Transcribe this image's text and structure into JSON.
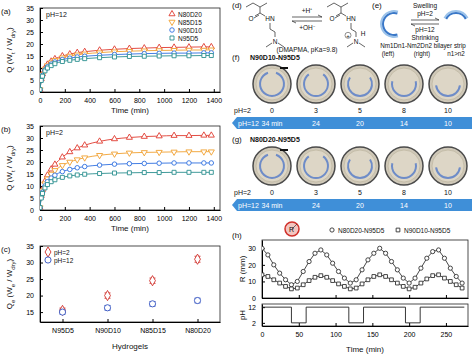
{
  "chart_data": [
    {
      "panel": "(a)",
      "type": "line",
      "annotation": "pH=12",
      "x_label": "Time (min)",
      "y_label": [
        "Q (W",
        "t",
        " / W",
        "dry",
        ")"
      ],
      "x": [
        0,
        10,
        20,
        40,
        60,
        90,
        120,
        180,
        240,
        300,
        360,
        480,
        600,
        720,
        840,
        960,
        1080,
        1200,
        1320,
        1380
      ],
      "xlim": [
        0,
        1450
      ],
      "xticks": [
        0,
        200,
        400,
        600,
        800,
        1000,
        1200,
        1400
      ],
      "ylim": [
        0,
        35
      ],
      "yticks": [
        0,
        5,
        10,
        15,
        20,
        25,
        30,
        35
      ],
      "legend": "top-right",
      "line_style": "smooth",
      "series": [
        {
          "name": "N80D20",
          "color": "#e03a2f",
          "marker": "triangle-up",
          "values": [
            1,
            5.5,
            7.5,
            10,
            11.5,
            12.8,
            13.8,
            15,
            15.8,
            16.4,
            16.8,
            17.4,
            17.8,
            18.1,
            18.3,
            18.5,
            18.6,
            18.7,
            18.8,
            18.8
          ]
        },
        {
          "name": "N85D15",
          "color": "#f0a030",
          "marker": "triangle-down",
          "values": [
            1,
            5.2,
            7.2,
            9.6,
            11,
            12.2,
            13.2,
            14.3,
            15,
            15.5,
            15.9,
            16.4,
            16.8,
            17,
            17.2,
            17.3,
            17.4,
            17.5,
            17.5,
            17.6
          ]
        },
        {
          "name": "N90D10",
          "color": "#2f6fe0",
          "marker": "circle",
          "values": [
            1,
            5,
            6.9,
            9.2,
            10.5,
            11.6,
            12.5,
            13.5,
            14.1,
            14.6,
            14.9,
            15.3,
            15.6,
            15.8,
            16,
            16.1,
            16.2,
            16.2,
            16.3,
            16.3
          ]
        },
        {
          "name": "N95D5",
          "color": "#2a8f8f",
          "marker": "square",
          "values": [
            1,
            4.8,
            6.6,
            8.8,
            10,
            11,
            11.8,
            12.7,
            13.2,
            13.6,
            13.9,
            14.3,
            14.6,
            14.8,
            14.9,
            15,
            15.1,
            15.1,
            15.2,
            15.2
          ]
        }
      ]
    },
    {
      "panel": "(b)",
      "type": "line",
      "annotation": "pH=2",
      "x_label": "Time (min)",
      "y_label": [
        "Q (W",
        "t",
        " / W",
        "dry",
        ")"
      ],
      "x": [
        0,
        10,
        20,
        40,
        60,
        90,
        120,
        180,
        240,
        300,
        360,
        480,
        600,
        720,
        840,
        960,
        1080,
        1200,
        1320,
        1380
      ],
      "xlim": [
        0,
        1450
      ],
      "xticks": [
        0,
        200,
        400,
        600,
        800,
        1000,
        1200,
        1400
      ],
      "ylim": [
        0,
        35
      ],
      "yticks": [
        0,
        5,
        10,
        15,
        20,
        25,
        30,
        35
      ],
      "line_style": "smooth",
      "series": [
        {
          "color": "#e03a2f",
          "marker": "triangle-up",
          "values": [
            1,
            6,
            8.5,
            12,
            14.5,
            17,
            19,
            22,
            24.2,
            25.8,
            27,
            28.6,
            29.6,
            30.2,
            30.6,
            30.8,
            31,
            31,
            31.1,
            31.1
          ]
        },
        {
          "color": "#f0a030",
          "marker": "triangle-down",
          "values": [
            1,
            5.6,
            8,
            11,
            13,
            15,
            16.5,
            18.6,
            20,
            21,
            21.8,
            22.8,
            23.4,
            23.8,
            24,
            24.1,
            24.2,
            24.3,
            24.3,
            24.3
          ]
        },
        {
          "color": "#2f6fe0",
          "marker": "circle",
          "values": [
            1,
            5.3,
            7.4,
            10,
            11.8,
            13.3,
            14.5,
            16,
            16.9,
            17.6,
            18.1,
            18.7,
            19.1,
            19.3,
            19.4,
            19.5,
            19.6,
            19.6,
            19.6,
            19.6
          ]
        },
        {
          "color": "#2a8f8f",
          "marker": "square",
          "values": [
            1,
            5,
            6.9,
            9.2,
            10.6,
            11.8,
            12.6,
            13.6,
            14.2,
            14.6,
            14.9,
            15.2,
            15.4,
            15.5,
            15.6,
            15.6,
            15.7,
            15.7,
            15.7,
            15.7
          ]
        }
      ]
    },
    {
      "panel": "(c)",
      "type": "scatter",
      "x_label": "Hydrogels",
      "y_label": [
        "Q",
        "e",
        " (W",
        "e",
        " / W",
        "dry",
        ")"
      ],
      "categories": [
        "N95D5",
        "N90D10",
        "N85D15",
        "N80D20"
      ],
      "ylim": [
        12,
        35
      ],
      "yticks": [
        15,
        20,
        25,
        30,
        35
      ],
      "legend": "top-left",
      "series": [
        {
          "name": "pH=2",
          "color": "#d0302a",
          "marker": "diamond",
          "values": [
            15.5,
            20,
            24.5,
            31
          ],
          "errors": [
            0.7,
            0.8,
            0.8,
            0.9
          ]
        },
        {
          "name": "pH=12",
          "color": "#3050c0",
          "marker": "circle",
          "values": [
            15,
            16.3,
            17.5,
            18.5
          ],
          "errors": [
            0.6,
            0.7,
            0.7,
            0.7
          ]
        }
      ]
    },
    {
      "panel": "(h)",
      "type": "line",
      "annotation": "R",
      "y_label": "R (mm)",
      "tick_labels": "y",
      "x": [
        0,
        8,
        16,
        24,
        32,
        40,
        48,
        56,
        64,
        72,
        80,
        88,
        96,
        104,
        112,
        120,
        128,
        136,
        144,
        152,
        160,
        168,
        176,
        184,
        192,
        200,
        208,
        216,
        224,
        232,
        240,
        248,
        256,
        264,
        272
      ],
      "xlim": [
        0,
        280
      ],
      "xticks": [
        0,
        50,
        100,
        150,
        200,
        250
      ],
      "ylim": [
        0,
        35
      ],
      "yticks": [
        0,
        10,
        20,
        30
      ],
      "legend": "top",
      "series": [
        {
          "name": "N80D20-N95D5",
          "color": "#333333",
          "marker": "circle",
          "values": [
            30,
            26,
            20,
            15,
            11,
            8,
            10,
            16,
            22,
            27,
            29,
            26,
            21,
            16,
            12,
            9,
            11,
            17,
            23,
            27,
            30,
            27,
            22,
            17,
            12,
            9,
            12,
            18,
            24,
            28,
            29,
            24,
            18,
            13,
            9
          ]
        },
        {
          "name": "N90D10-N95D5",
          "color": "#333333",
          "marker": "square",
          "values": [
            14,
            13,
            11,
            9,
            7,
            5.5,
            6,
            8,
            10.5,
            12.5,
            13.5,
            12.5,
            10.5,
            8.5,
            7,
            5.5,
            6,
            8.5,
            11,
            13,
            14,
            13,
            11,
            9,
            7,
            5.5,
            6.5,
            9,
            11.5,
            13.5,
            14,
            12,
            10,
            8,
            6
          ]
        }
      ]
    },
    {
      "type": "line",
      "x_label": "Time (min)",
      "y_label": "pH",
      "x": [
        0,
        40,
        40,
        60,
        60,
        118,
        118,
        138,
        138,
        195,
        195,
        215,
        215,
        275
      ],
      "xlim": [
        0,
        280
      ],
      "xticks": [
        0,
        50,
        100,
        150,
        200,
        250
      ],
      "ylim": [
        0,
        14
      ],
      "yticks": [
        2,
        12
      ],
      "series": [
        {
          "color": "#222222",
          "values": [
            12,
            12,
            2,
            2,
            12,
            12,
            2,
            2,
            12,
            12,
            2,
            2,
            12,
            12
          ]
        }
      ]
    }
  ],
  "chemistry": {
    "panel": "(d)",
    "left_atoms": [
      "O",
      "HN",
      "N"
    ],
    "right_atoms": [
      "O",
      "HN",
      "N",
      "H",
      "+"
    ],
    "forward": "+H⁺",
    "backward": "+OH⁻",
    "caption": "(DMAPMA, pKa=9.8)"
  },
  "bilayer": {
    "panel": "(e)",
    "top": [
      "Swelling",
      "pH=2"
    ],
    "bottom": [
      "pH=12",
      "Shrinking"
    ],
    "caption": "Nm1Dn1-Nm2Dn2 bilayer strip",
    "sides": [
      "(left)",
      "(right)"
    ],
    "condition": "n1>n2"
  },
  "photos": [
    {
      "panel": "(f)",
      "title": "N90D10-N95D5",
      "rows": [
        {
          "label": "pH=2",
          "times": [
            0,
            3,
            5,
            8,
            10
          ]
        },
        {
          "label": "pH=12",
          "times": [
            "34 min",
            24,
            20,
            14,
            10
          ]
        }
      ]
    },
    {
      "panel": "(g)",
      "title": "N80D20-N95D5",
      "rows": [
        {
          "label": "pH=2",
          "times": [
            0,
            3,
            5,
            8,
            10
          ]
        },
        {
          "label": "pH=12",
          "times": [
            "34 min",
            24,
            20,
            14,
            10
          ]
        }
      ]
    }
  ]
}
